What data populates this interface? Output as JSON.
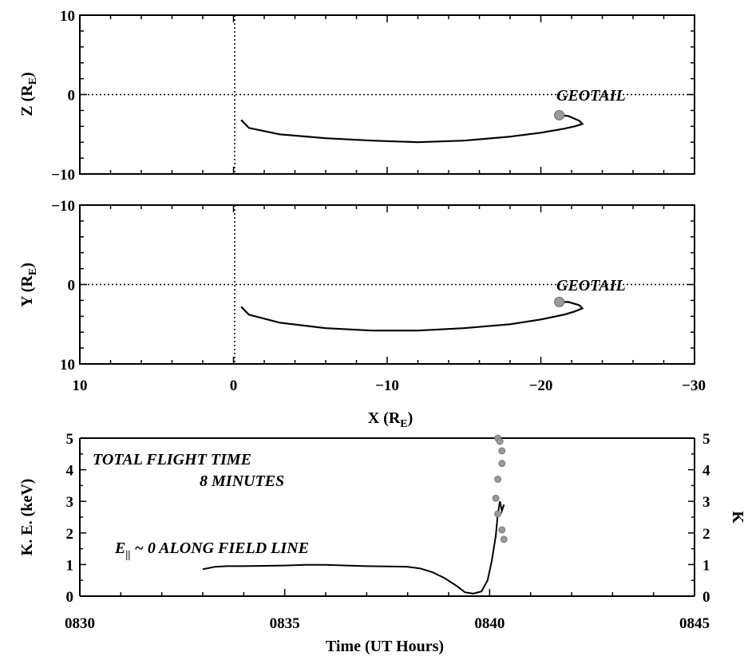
{
  "chart_data": [
    {
      "type": "line",
      "ylabel_main": "Z (R",
      "ylabel_sub": "E",
      "ylabel_close": ")",
      "xlim": [
        10,
        -30
      ],
      "ylim": [
        -10,
        10
      ],
      "yticks": [
        {
          "v": 10,
          "label": "10"
        },
        {
          "v": 0,
          "label": "0"
        },
        {
          "v": -10,
          "label": "−10"
        }
      ],
      "reference_lines": {
        "x": 0,
        "y": 0
      },
      "annotation": "GEOTAIL",
      "spacecraft_marker": {
        "x": -21.2,
        "y": -2.6
      },
      "series": [
        {
          "x": [
            -0.5,
            -1,
            -3,
            -6,
            -9,
            -12,
            -15,
            -18,
            -20,
            -21.5,
            -22.2,
            -22.7,
            -22.5,
            -21.8,
            -21.3
          ],
          "y": [
            -3.2,
            -4.2,
            -5.0,
            -5.5,
            -5.8,
            -6.0,
            -5.8,
            -5.3,
            -4.8,
            -4.3,
            -4.0,
            -3.7,
            -3.3,
            -2.7,
            -2.6
          ]
        }
      ]
    },
    {
      "type": "line",
      "ylabel_main": "Y (R",
      "ylabel_sub": "E",
      "ylabel_close": ")",
      "xlabel_main": "X (R",
      "xlabel_sub": "E",
      "xlabel_close": ")",
      "xlim": [
        10,
        -30
      ],
      "ylim": [
        -10,
        10
      ],
      "y_inverted": true,
      "xticks": [
        {
          "v": 10,
          "label": "10"
        },
        {
          "v": 0,
          "label": "0"
        },
        {
          "v": -10,
          "label": "−10"
        },
        {
          "v": -20,
          "label": "−20"
        },
        {
          "v": -30,
          "label": "−30"
        }
      ],
      "yticks": [
        {
          "v": -10,
          "label": "−10"
        },
        {
          "v": 0,
          "label": "0"
        },
        {
          "v": 10,
          "label": "10"
        }
      ],
      "reference_lines": {
        "x": 0,
        "y": 0
      },
      "annotation": "GEOTAIL",
      "spacecraft_marker": {
        "x": -21.2,
        "y": 2.2
      },
      "series": [
        {
          "x": [
            -0.5,
            -1,
            -3,
            -6,
            -9,
            -12,
            -15,
            -18,
            -20,
            -21.5,
            -22.2,
            -22.7,
            -22.5,
            -21.8,
            -21.3
          ],
          "y": [
            2.8,
            3.8,
            4.8,
            5.5,
            5.8,
            5.8,
            5.5,
            5.0,
            4.4,
            3.8,
            3.4,
            3.0,
            2.6,
            2.2,
            2.2
          ]
        }
      ]
    },
    {
      "type": "line",
      "ylabel": "K. E. (keV)",
      "ylabel_right": "K",
      "xlabel": "Time (UT Hours)",
      "xlim": [
        830,
        845
      ],
      "ylim": [
        0,
        5
      ],
      "xticks": [
        {
          "v": 830,
          "label": "0830"
        },
        {
          "v": 835,
          "label": "0835"
        },
        {
          "v": 840,
          "label": "0840"
        },
        {
          "v": 845,
          "label": "0845"
        }
      ],
      "yticks": [
        "0",
        "1",
        "2",
        "3",
        "4",
        "5"
      ],
      "annotation_1": "TOTAL FLIGHT TIME",
      "annotation_2": "8 MINUTES",
      "annotation_3_prefix": "E",
      "annotation_3_sub": "||",
      "annotation_3_rest": " ~ 0 ALONG FIELD LINE",
      "series": [
        {
          "x": [
            833.0,
            833.3,
            833.6,
            834.0,
            834.5,
            835.0,
            835.5,
            836.0,
            836.5,
            837.0,
            837.5,
            838.0,
            838.3,
            838.6,
            838.9,
            839.2,
            839.4,
            839.6,
            839.8,
            839.95,
            840.05,
            840.15,
            840.2,
            840.25,
            840.3,
            840.35
          ],
          "y": [
            0.85,
            0.93,
            0.95,
            0.95,
            0.96,
            0.97,
            0.99,
            0.99,
            0.97,
            0.95,
            0.94,
            0.93,
            0.88,
            0.76,
            0.57,
            0.32,
            0.12,
            0.08,
            0.15,
            0.5,
            1.1,
            1.9,
            2.6,
            3.0,
            2.7,
            2.9
          ]
        }
      ],
      "markers": {
        "x": [
          840.2,
          840.25,
          840.3,
          840.3,
          840.2,
          840.15,
          840.2,
          840.3,
          840.35
        ],
        "y": [
          5.0,
          4.9,
          4.6,
          4.2,
          3.7,
          3.1,
          2.6,
          2.1,
          1.8
        ]
      }
    }
  ]
}
